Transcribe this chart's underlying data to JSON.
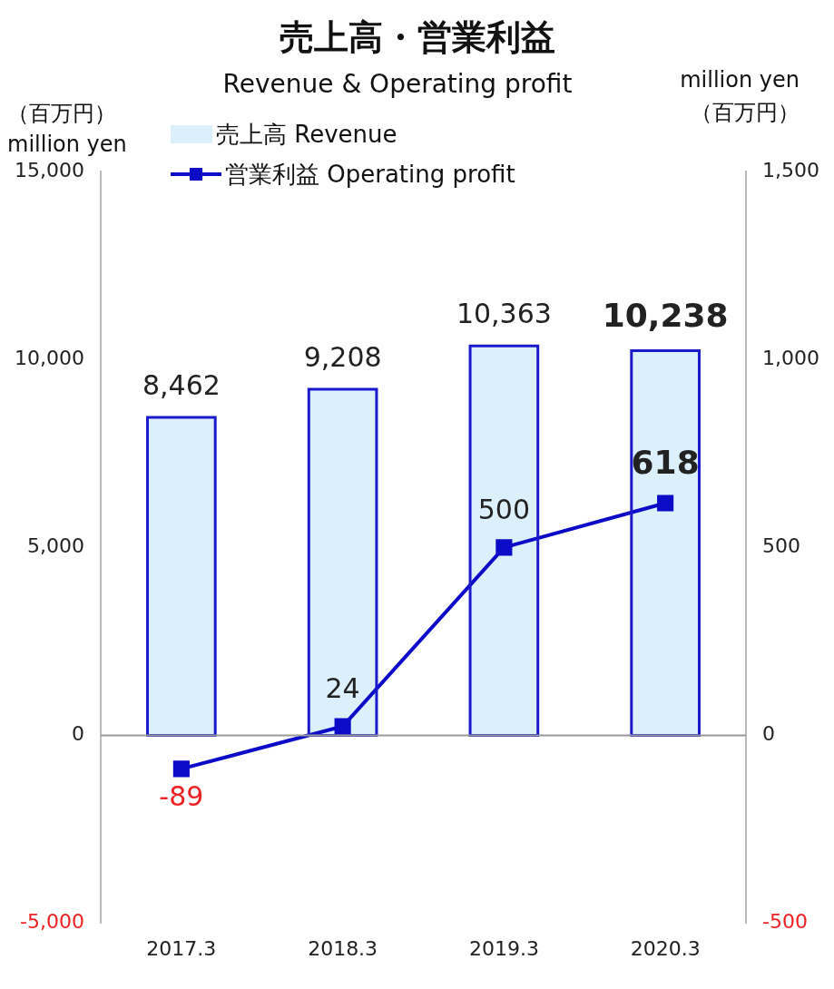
{
  "chart_data": {
    "type": "bar",
    "title": "売上高・営業利益",
    "subtitle": "Revenue & Operating profit",
    "ylabel": "（百万円）\nmillion yen",
    "y2label": "million yen\n（百万円）",
    "categories": [
      "2017.3",
      "2018.3",
      "2019.3",
      "2020.3"
    ],
    "series": [
      {
        "name": "売上高 Revenue",
        "color": "#dcf0fc",
        "values": [
          8462,
          9208,
          10363,
          10238
        ],
        "value_labels": [
          "8,462",
          "9,208",
          "10,363",
          "10,238"
        ]
      },
      {
        "name": "営業利益 Operating profit",
        "type": "line",
        "axis": "y2",
        "color": "#0c0cc8",
        "marker": "square",
        "values": [
          -89,
          24,
          500,
          618
        ],
        "value_labels": [
          "-89",
          "24",
          "500",
          "618"
        ]
      }
    ],
    "ylim": [
      -5000,
      15000
    ],
    "yticks": [
      {
        "value": -5000,
        "label": "-5,000"
      },
      0,
      {
        "value": 5000,
        "label": "5,000"
      },
      {
        "value": 10000,
        "label": "10,000"
      },
      {
        "value": 15000,
        "label": "15,000"
      }
    ],
    "y2lim": [
      -500,
      1500
    ],
    "y2ticks": [
      -500,
      0,
      500,
      {
        "value": 1000,
        "label": "1,000"
      },
      {
        "value": 1500,
        "label": "1,500"
      }
    ],
    "ref_lines": [
      {
        "axis": "y",
        "value": 0,
        "color": "#999999"
      }
    ],
    "legend": "top left",
    "grid": false
  }
}
